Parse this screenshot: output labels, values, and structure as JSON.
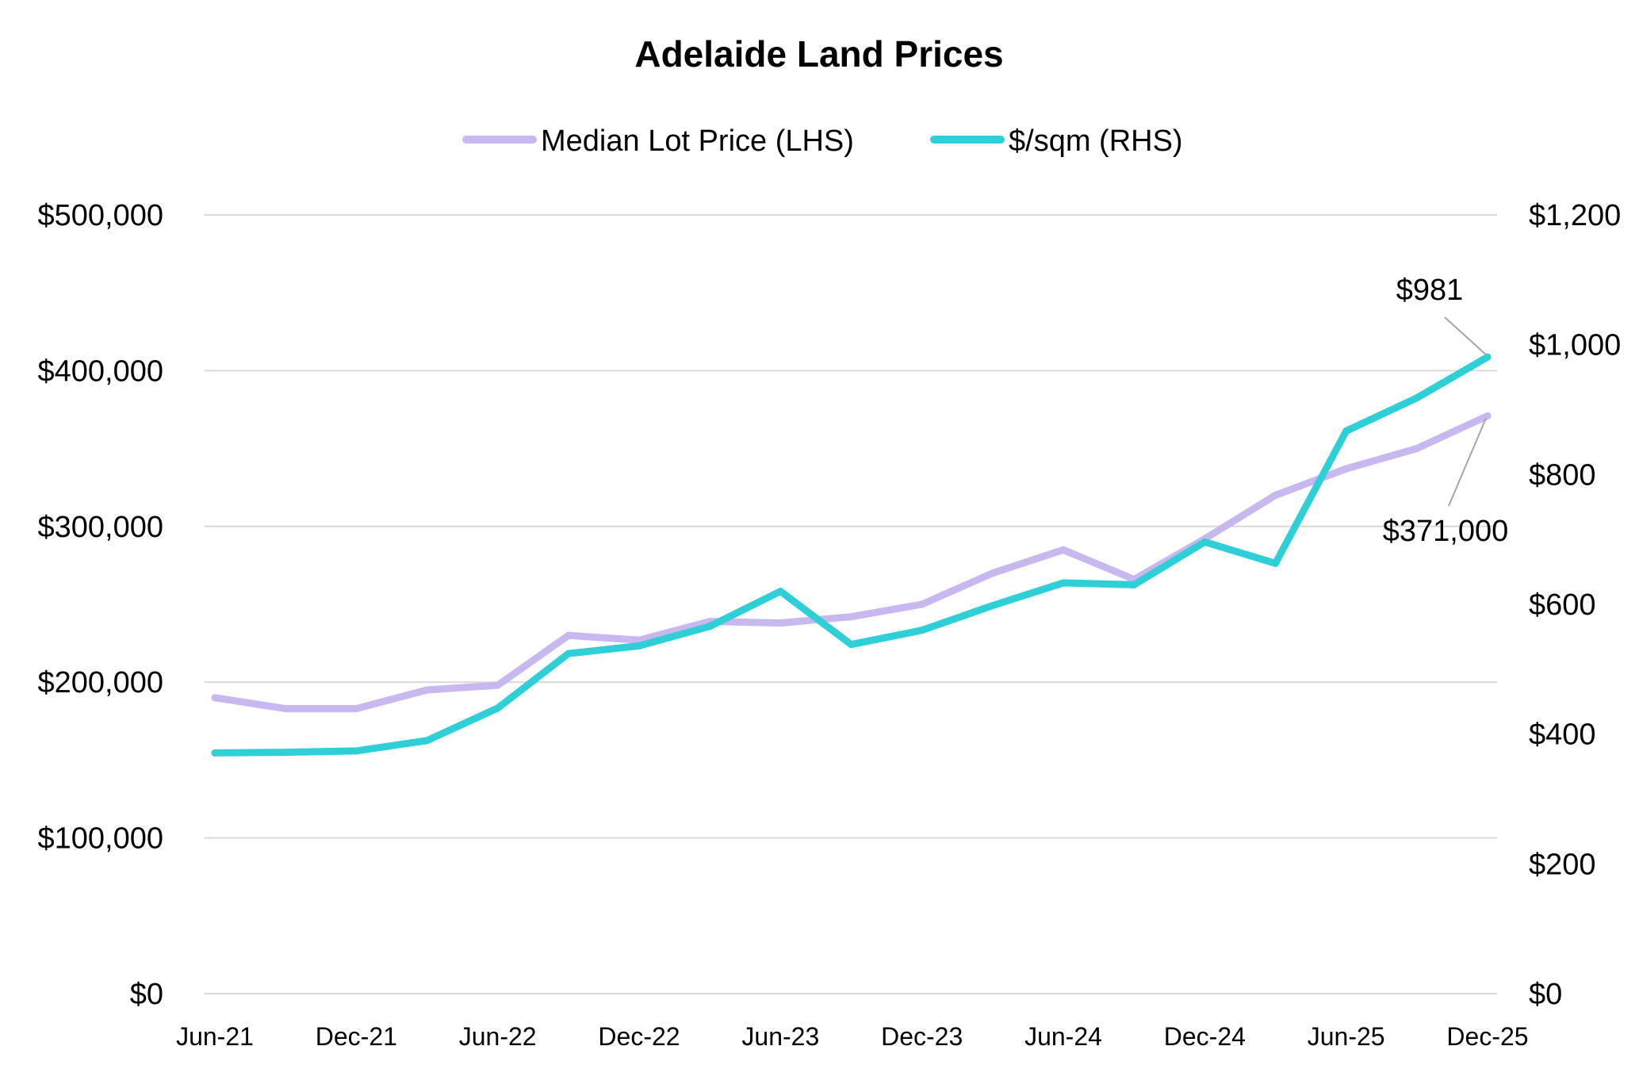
{
  "chart_data": {
    "type": "line",
    "title": "Adelaide Land Prices",
    "categories": [
      "Jun-21",
      "Sep-21",
      "Dec-21",
      "Mar-22",
      "Jun-22",
      "Sep-22",
      "Dec-22",
      "Mar-23",
      "Jun-23",
      "Sep-23",
      "Dec-23",
      "Mar-24",
      "Jun-24",
      "Sep-24",
      "Dec-24",
      "Mar-25",
      "Jun-25",
      "Sep-25",
      "Dec-25"
    ],
    "x_tick_labels": [
      "Jun-21",
      "Dec-21",
      "Jun-22",
      "Dec-22",
      "Jun-23",
      "Dec-23",
      "Jun-24",
      "Dec-24",
      "Jun-25",
      "Dec-25"
    ],
    "series": [
      {
        "name": "Median Lot Price (LHS)",
        "axis": "left",
        "color": "#c9b8f0",
        "values": [
          190000,
          183000,
          183000,
          195000,
          198000,
          230000,
          227000,
          239000,
          238000,
          242000,
          250000,
          270000,
          285000,
          266000,
          292000,
          320000,
          337000,
          350000,
          371000
        ]
      },
      {
        "name": "$/sqm (RHS)",
        "axis": "right",
        "color": "#2ecfd6",
        "values": [
          371,
          372,
          374,
          390,
          440,
          524,
          536,
          566,
          620,
          538,
          560,
          598,
          633,
          630,
          696,
          663,
          867,
          918,
          981
        ]
      }
    ],
    "y_left": {
      "min": 0,
      "max": 500000,
      "tick_labels": [
        "$0",
        "$100,000",
        "$200,000",
        "$300,000",
        "$400,000",
        "$500,000"
      ]
    },
    "y_right": {
      "min": 0,
      "max": 1200,
      "tick_labels": [
        "$0",
        "$200",
        "$400",
        "$600",
        "$800",
        "$1,000",
        "$1,200"
      ]
    },
    "annotations": [
      {
        "series": "$/sqm (RHS)",
        "category": "Dec-25",
        "label": "$981"
      },
      {
        "series": "Median Lot Price (LHS)",
        "category": "Dec-25",
        "label": "$371,000"
      }
    ],
    "grid": true,
    "legend_position": "top-center"
  }
}
